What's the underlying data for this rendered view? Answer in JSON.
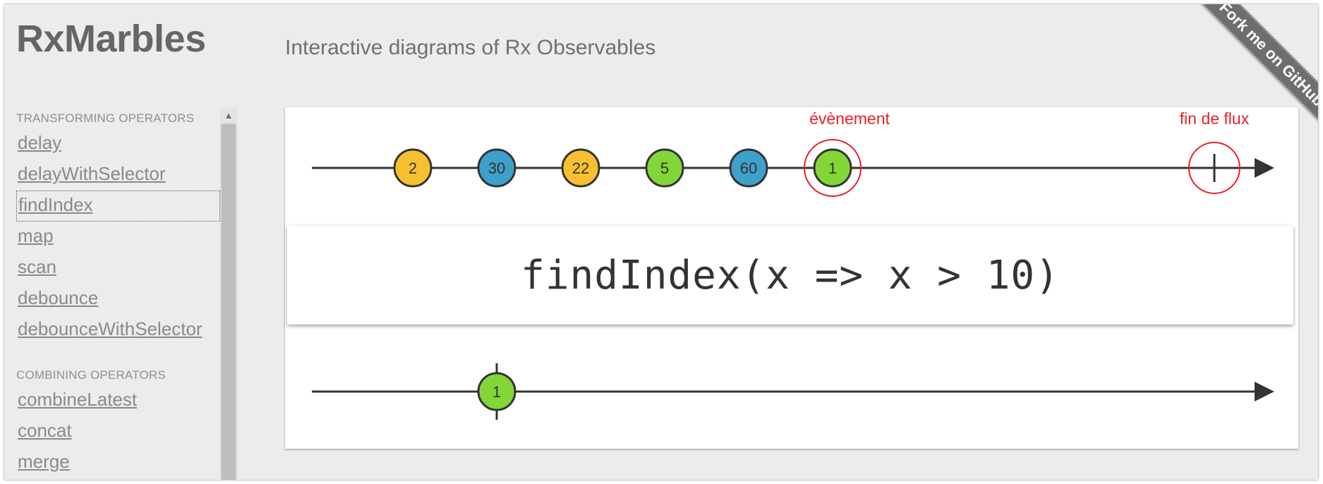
{
  "app": {
    "title": "RxMarbles",
    "subtitle": "Interactive diagrams of Rx Observables",
    "github_ribbon": "Fork me on GitHub"
  },
  "sidebar": {
    "groups": [
      {
        "title": "TRANSFORMING OPERATORS",
        "items": [
          "delay",
          "delayWithSelector",
          "findIndex",
          "map",
          "scan",
          "debounce",
          "debounceWithSelector"
        ]
      },
      {
        "title": "COMBINING OPERATORS",
        "items": [
          "combineLatest",
          "concat",
          "merge"
        ]
      }
    ],
    "selected": "findIndex"
  },
  "diagram": {
    "operator_expression": "findIndex(x => x > 10)",
    "input_marbles": [
      {
        "value": "2",
        "color": "yellow"
      },
      {
        "value": "30",
        "color": "blue"
      },
      {
        "value": "22",
        "color": "yellow"
      },
      {
        "value": "5",
        "color": "green"
      },
      {
        "value": "60",
        "color": "blue"
      },
      {
        "value": "1",
        "color": "green"
      }
    ],
    "output_marbles": [
      {
        "value": "1",
        "color": "green"
      }
    ],
    "annotations": {
      "event_label": "évènement",
      "completion_label": "fin de flux"
    }
  },
  "colors": {
    "yellow": "#f8c030",
    "blue": "#3ea1cb",
    "green": "#82d736",
    "annotation": "#e8222a",
    "background": "#ececec"
  }
}
